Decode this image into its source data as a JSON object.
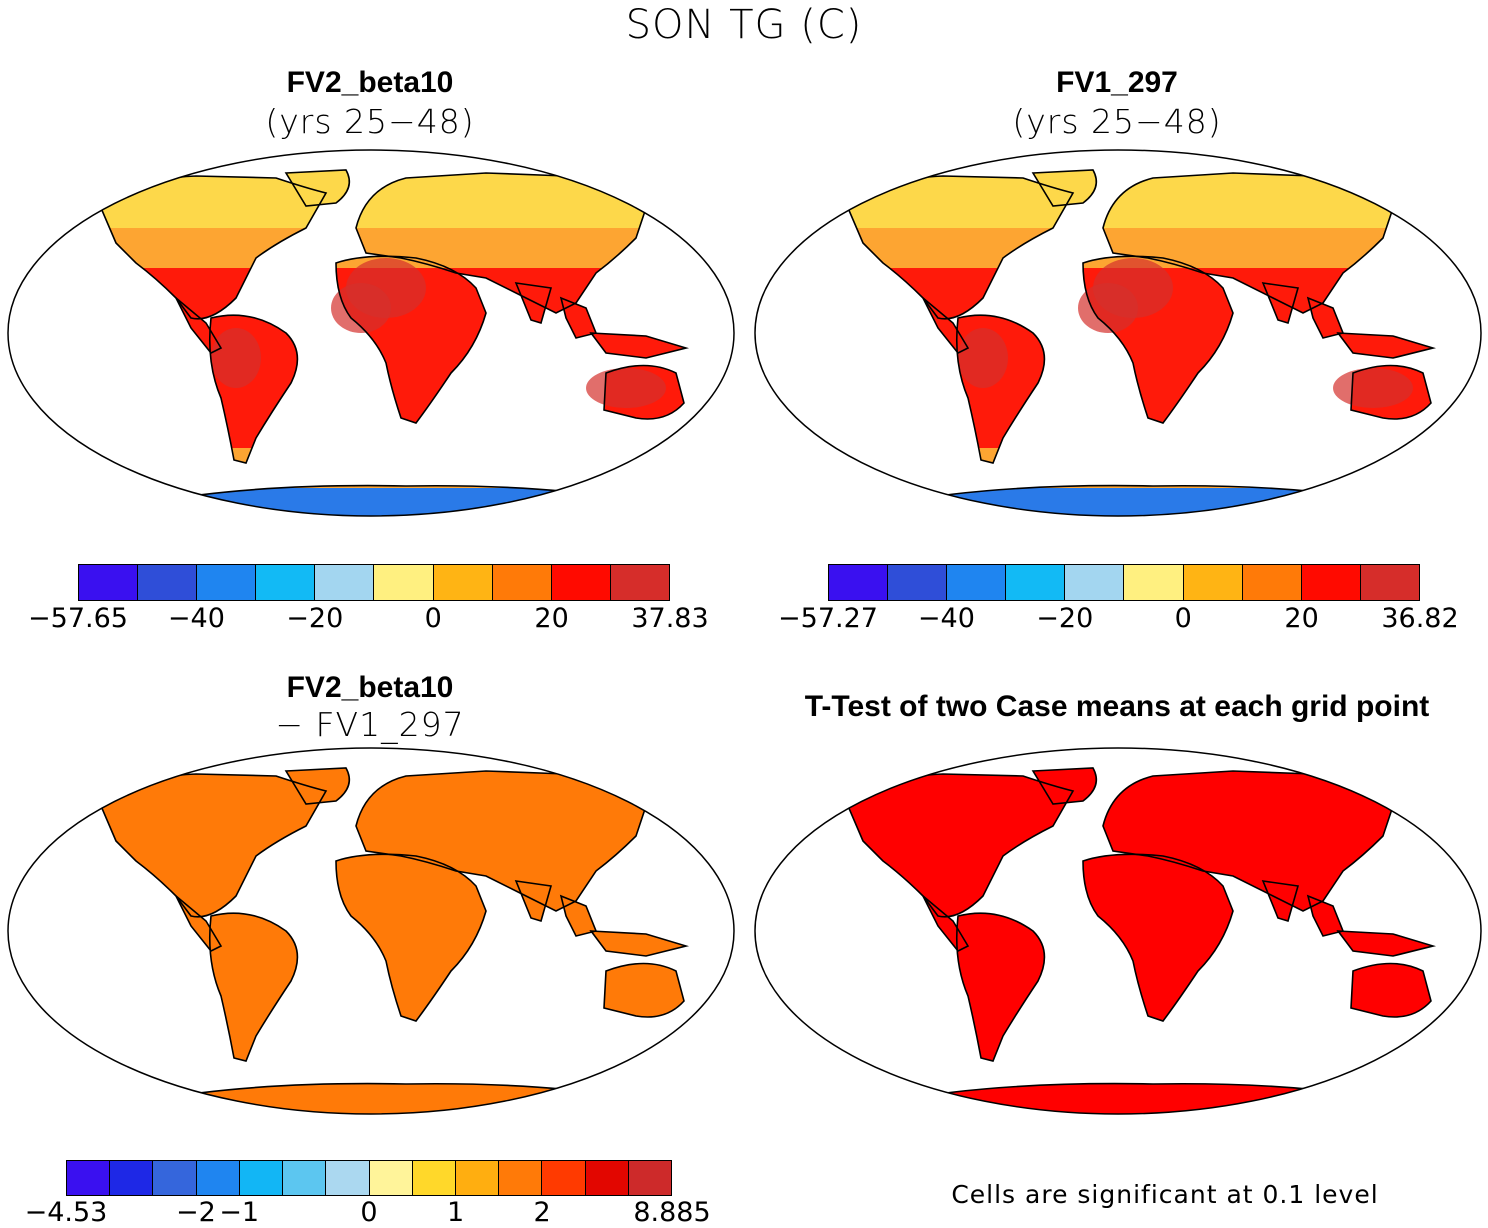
{
  "title": "SON TG (C)",
  "palettes": {
    "abs": [
      "#3a10f0",
      "#2f4ed8",
      "#1f85f0",
      "#12baf5",
      "#a3d6f0",
      "#fff080",
      "#ffb414",
      "#ff7a08",
      "#ff0a00",
      "#d62d2a"
    ],
    "diff": [
      "#3a10f0",
      "#1e28e6",
      "#3566dc",
      "#1f85f0",
      "#12b6f5",
      "#5cc6f0",
      "#abd8f0",
      "#fff49a",
      "#ffd82a",
      "#ffae10",
      "#ff7a08",
      "#ff3a00",
      "#e20600",
      "#cd2a2a"
    ],
    "land": {
      "north": "#fdd84a",
      "temperate": "#fda532",
      "tropics": "#ff1a0a",
      "arid": "#d4302c",
      "polar": "#2a7ae8"
    }
  },
  "panels": [
    {
      "title": "FV2_beta10",
      "subtitle": "(yrs 25−48)",
      "ticks": [
        "−57.65",
        "−40",
        "−20",
        "0",
        "20",
        "37.83"
      ]
    },
    {
      "title": "FV1_297",
      "subtitle": "(yrs 25−48)",
      "ticks": [
        "−57.27",
        "−40",
        "−20",
        "0",
        "20",
        "36.82"
      ]
    },
    {
      "title": "FV2_beta10",
      "subtitle": "− FV1_297",
      "ticks": [
        "−4.53",
        "−2",
        "−1",
        "0",
        "1",
        "2",
        "8.885"
      ]
    },
    {
      "title": "T-Test of two Case means at each grid point",
      "note": "Cells are significant at 0.1 level"
    }
  ]
}
